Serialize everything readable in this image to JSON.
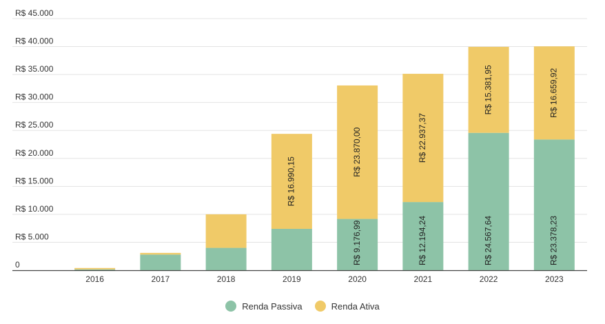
{
  "chart_data": {
    "type": "bar",
    "stacked": true,
    "categories": [
      "2016",
      "2017",
      "2018",
      "2019",
      "2020",
      "2021",
      "2022",
      "2023"
    ],
    "series": [
      {
        "name": "Renda Passiva",
        "color": "#8dc3a7",
        "values": [
          150,
          2800,
          4000,
          7400,
          9176.99,
          12194.24,
          24567.64,
          23378.23
        ],
        "labels": [
          "",
          "",
          "",
          "",
          "R$ 9.176,99",
          "R$ 12.194,24",
          "R$ 24.567,64",
          "R$ 23.378,23"
        ]
      },
      {
        "name": "Renda Ativa",
        "color": "#f0ca68",
        "values": [
          250,
          300,
          6000,
          16990.15,
          23870.0,
          22937.37,
          15381.95,
          16659.92
        ],
        "labels": [
          "",
          "",
          "",
          "R$ 16.990,15",
          "R$ 23.870,00",
          "R$ 22.937,37",
          "R$ 15.381,95",
          "R$ 16.659,92"
        ]
      }
    ],
    "y_ticks": [
      "0",
      "R$ 5.000",
      "R$ 10.000",
      "R$ 15.000",
      "R$ 20.000",
      "R$ 25.000",
      "R$ 30.000",
      "R$ 35.000",
      "R$ 40.000",
      "R$ 45.000"
    ],
    "ylim": [
      0,
      45000
    ],
    "grid": true,
    "legend_position": "bottom-center"
  }
}
